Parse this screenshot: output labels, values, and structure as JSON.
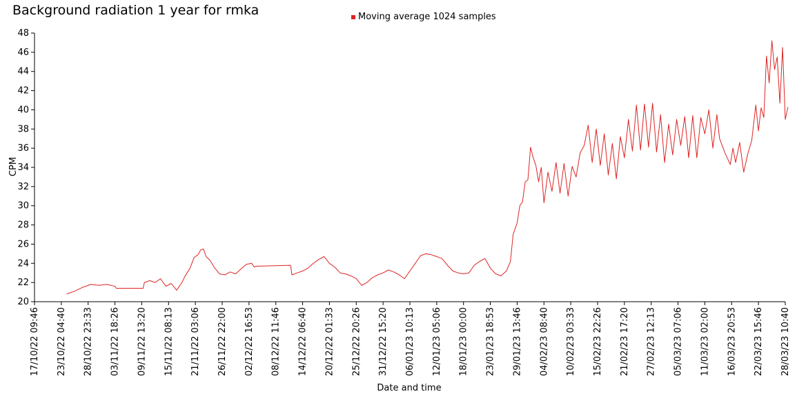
{
  "chart_data": {
    "type": "line",
    "title": "Background radiation 1 year for rmka",
    "xlabel": "Date and time",
    "ylabel": "CPM",
    "ylim": [
      20,
      48
    ],
    "yticks": [
      20,
      22,
      24,
      26,
      28,
      30,
      32,
      34,
      36,
      38,
      40,
      42,
      44,
      46,
      48
    ],
    "x_tick_labels": [
      "17/10/22 09:46",
      "23/10/22 04:40",
      "28/10/22 23:33",
      "03/11/22 18:26",
      "09/11/22 13:20",
      "15/11/22 08:13",
      "21/11/22 03:06",
      "26/11/22 22:00",
      "02/12/22 16:53",
      "08/12/22 11:46",
      "14/12/22 06:40",
      "20/12/22 01:33",
      "25/12/22 20:26",
      "31/12/22 15:20",
      "06/01/23 10:13",
      "12/01/23 05:06",
      "18/01/23 00:00",
      "23/01/23 18:53",
      "29/01/23 13:46",
      "04/02/23 08:40",
      "10/02/23 03:33",
      "15/02/23 22:26",
      "21/02/23 17:20",
      "27/02/23 12:13",
      "05/03/23 07:06",
      "11/03/23 02:00",
      "16/03/23 20:53",
      "22/03/23 15:46",
      "28/03/23 10:40"
    ],
    "legend_position": "top-center",
    "grid": false,
    "series": [
      {
        "name": "Moving average 1024 samples",
        "color": "#dd2222",
        "points": [
          [
            1.2,
            20.8
          ],
          [
            1.5,
            21.1
          ],
          [
            1.8,
            21.5
          ],
          [
            2.1,
            21.8
          ],
          [
            2.4,
            21.7
          ],
          [
            2.7,
            21.8
          ],
          [
            3.0,
            21.6
          ],
          [
            3.05,
            21.4
          ],
          [
            4.05,
            21.4
          ],
          [
            4.1,
            22.0
          ],
          [
            4.3,
            22.2
          ],
          [
            4.5,
            22.0
          ],
          [
            4.7,
            22.4
          ],
          [
            4.9,
            21.6
          ],
          [
            5.1,
            21.9
          ],
          [
            5.3,
            21.2
          ],
          [
            5.5,
            22.0
          ],
          [
            5.6,
            22.6
          ],
          [
            5.8,
            23.5
          ],
          [
            5.95,
            24.6
          ],
          [
            6.1,
            24.9
          ],
          [
            6.2,
            25.4
          ],
          [
            6.3,
            25.5
          ],
          [
            6.4,
            24.7
          ],
          [
            6.55,
            24.3
          ],
          [
            6.7,
            23.6
          ],
          [
            6.9,
            22.9
          ],
          [
            7.1,
            22.8
          ],
          [
            7.3,
            23.1
          ],
          [
            7.5,
            22.9
          ],
          [
            7.7,
            23.4
          ],
          [
            7.9,
            23.9
          ],
          [
            8.1,
            24.0
          ],
          [
            8.2,
            23.6
          ],
          [
            8.25,
            23.7
          ],
          [
            9.55,
            23.8
          ],
          [
            9.6,
            22.8
          ],
          [
            9.8,
            23.0
          ],
          [
            10.0,
            23.2
          ],
          [
            10.2,
            23.5
          ],
          [
            10.4,
            24.0
          ],
          [
            10.6,
            24.4
          ],
          [
            10.8,
            24.7
          ],
          [
            11.0,
            24.0
          ],
          [
            11.2,
            23.6
          ],
          [
            11.4,
            23.0
          ],
          [
            11.6,
            22.9
          ],
          [
            11.8,
            22.7
          ],
          [
            12.0,
            22.4
          ],
          [
            12.2,
            21.7
          ],
          [
            12.4,
            22.0
          ],
          [
            12.6,
            22.5
          ],
          [
            12.8,
            22.8
          ],
          [
            13.0,
            23.0
          ],
          [
            13.2,
            23.3
          ],
          [
            13.4,
            23.1
          ],
          [
            13.6,
            22.8
          ],
          [
            13.8,
            22.4
          ],
          [
            14.0,
            23.2
          ],
          [
            14.2,
            24.0
          ],
          [
            14.4,
            24.8
          ],
          [
            14.6,
            25.0
          ],
          [
            14.8,
            24.9
          ],
          [
            15.0,
            24.7
          ],
          [
            15.2,
            24.5
          ],
          [
            15.4,
            23.8
          ],
          [
            15.6,
            23.2
          ],
          [
            15.8,
            23.0
          ],
          [
            16.0,
            22.9
          ],
          [
            16.2,
            23.0
          ],
          [
            16.4,
            23.8
          ],
          [
            16.6,
            24.2
          ],
          [
            16.8,
            24.5
          ],
          [
            17.0,
            23.5
          ],
          [
            17.2,
            22.9
          ],
          [
            17.4,
            22.7
          ],
          [
            17.6,
            23.2
          ],
          [
            17.75,
            24.2
          ],
          [
            17.85,
            27.0
          ],
          [
            18.0,
            28.2
          ],
          [
            18.1,
            30.0
          ],
          [
            18.2,
            30.4
          ],
          [
            18.3,
            32.5
          ],
          [
            18.4,
            32.7
          ],
          [
            18.5,
            36.1
          ],
          [
            18.6,
            35.0
          ],
          [
            18.7,
            34.2
          ],
          [
            18.8,
            32.5
          ],
          [
            18.9,
            34.0
          ],
          [
            19.0,
            30.3
          ],
          [
            19.15,
            33.5
          ],
          [
            19.3,
            31.5
          ],
          [
            19.45,
            34.5
          ],
          [
            19.6,
            31.3
          ],
          [
            19.75,
            34.4
          ],
          [
            19.9,
            31.0
          ],
          [
            20.05,
            34.1
          ],
          [
            20.2,
            33.0
          ],
          [
            20.35,
            35.5
          ],
          [
            20.5,
            36.3
          ],
          [
            20.65,
            38.4
          ],
          [
            20.8,
            34.5
          ],
          [
            20.95,
            38.0
          ],
          [
            21.1,
            34.2
          ],
          [
            21.25,
            37.5
          ],
          [
            21.4,
            33.2
          ],
          [
            21.55,
            36.5
          ],
          [
            21.7,
            32.8
          ],
          [
            21.85,
            37.2
          ],
          [
            22.0,
            35.0
          ],
          [
            22.15,
            39.0
          ],
          [
            22.3,
            35.7
          ],
          [
            22.45,
            40.5
          ],
          [
            22.6,
            35.8
          ],
          [
            22.75,
            40.6
          ],
          [
            22.9,
            36.1
          ],
          [
            23.05,
            40.7
          ],
          [
            23.2,
            35.6
          ],
          [
            23.35,
            39.5
          ],
          [
            23.5,
            34.5
          ],
          [
            23.65,
            38.5
          ],
          [
            23.8,
            35.3
          ],
          [
            23.95,
            39.0
          ],
          [
            24.1,
            36.3
          ],
          [
            24.25,
            39.3
          ],
          [
            24.4,
            35.0
          ],
          [
            24.55,
            39.4
          ],
          [
            24.7,
            35.0
          ],
          [
            24.85,
            39.2
          ],
          [
            25.0,
            37.5
          ],
          [
            25.15,
            40.0
          ],
          [
            25.3,
            36.0
          ],
          [
            25.45,
            39.5
          ],
          [
            25.55,
            37.0
          ],
          [
            25.75,
            35.5
          ],
          [
            25.95,
            34.3
          ],
          [
            26.05,
            36.0
          ],
          [
            26.15,
            34.5
          ],
          [
            26.3,
            36.6
          ],
          [
            26.45,
            33.5
          ],
          [
            26.6,
            35.4
          ],
          [
            26.75,
            36.8
          ],
          [
            26.9,
            40.5
          ],
          [
            27.0,
            37.8
          ],
          [
            27.1,
            40.2
          ],
          [
            27.2,
            39.2
          ],
          [
            27.3,
            45.6
          ],
          [
            27.4,
            42.8
          ],
          [
            27.5,
            47.2
          ],
          [
            27.6,
            44.2
          ],
          [
            27.7,
            45.5
          ],
          [
            27.8,
            40.7
          ],
          [
            27.9,
            46.5
          ],
          [
            28.0,
            39.0
          ],
          [
            28.1,
            40.3
          ]
        ]
      }
    ]
  }
}
